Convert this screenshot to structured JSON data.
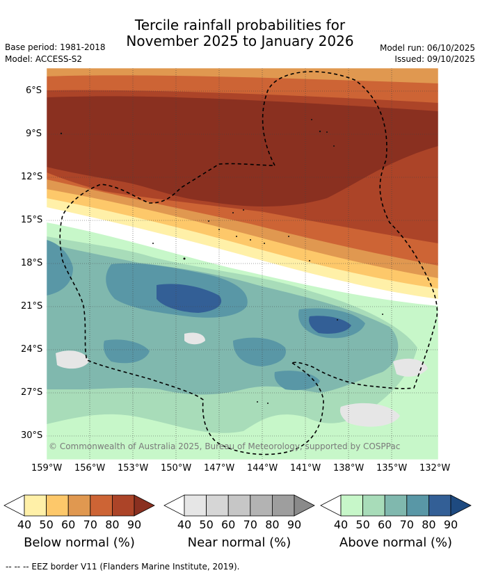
{
  "title": {
    "line1": "Tercile rainfall probabilities for",
    "line2": "November 2025 to January 2026"
  },
  "left_meta": {
    "base_period": "Base period: 1981-2018",
    "model": "Model: ACCESS-S2"
  },
  "right_meta": {
    "model_run": "Model run: 06/10/2025",
    "issued": "Issued: 09/10/2025"
  },
  "map": {
    "lat_labels": [
      "6°S",
      "9°S",
      "12°S",
      "15°S",
      "18°S",
      "21°S",
      "24°S",
      "27°S",
      "30°S"
    ],
    "lon_labels": [
      "159°W",
      "156°W",
      "153°W",
      "150°W",
      "147°W",
      "144°W",
      "141°W",
      "138°W",
      "135°W",
      "132°W"
    ],
    "copyright": "© Commonwealth of Australia 2025, Bureau of Meteorology, supported by COSPPac"
  },
  "legends": [
    {
      "name": "below",
      "label": "Below normal (%)",
      "ticks": [
        "40",
        "50",
        "60",
        "70",
        "80",
        "90"
      ],
      "colors": [
        "#fff0a8",
        "#fdc86a",
        "#e09850",
        "#cd6435",
        "#ac4428",
        "#8a3020"
      ]
    },
    {
      "name": "near",
      "label": "Near normal (%)",
      "ticks": [
        "40",
        "50",
        "60",
        "70",
        "80",
        "90"
      ],
      "colors": [
        "#e6e6e6",
        "#d6d6d6",
        "#c6c6c6",
        "#b3b3b3",
        "#9e9e9e",
        "#8a8a8a"
      ]
    },
    {
      "name": "above",
      "label": "Above normal (%)",
      "ticks": [
        "40",
        "50",
        "60",
        "70",
        "80",
        "90"
      ],
      "colors": [
        "#c7f7c9",
        "#a8dcb9",
        "#80b8ae",
        "#5997a6",
        "#335f96",
        "#1e4a80"
      ]
    }
  ],
  "footnote": "--  --  -- EEZ border V11 (Flanders Marine Institute, 2019)."
}
